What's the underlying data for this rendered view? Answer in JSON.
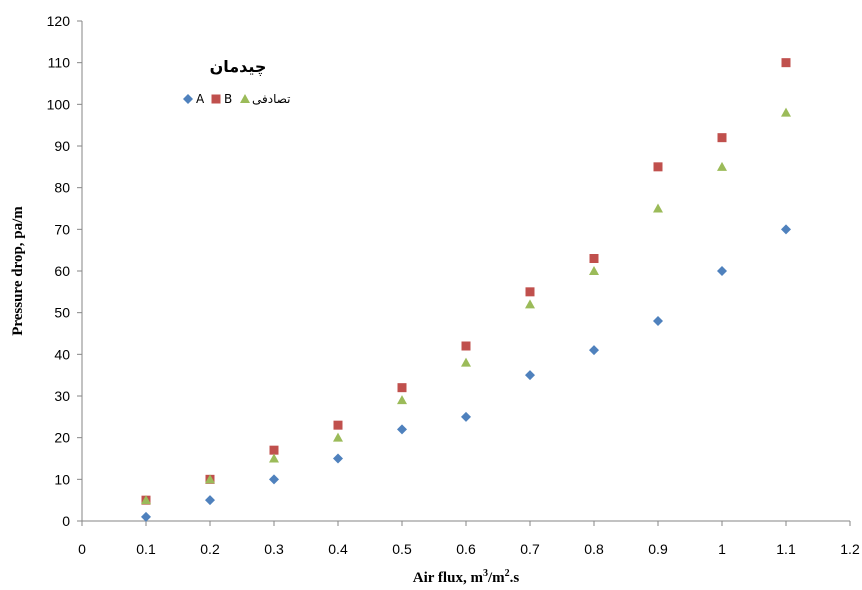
{
  "chart_data": {
    "type": "scatter",
    "x": [
      0.1,
      0.2,
      0.3,
      0.4,
      0.5,
      0.6,
      0.7,
      0.8,
      0.9,
      1.0,
      1.1
    ],
    "series": [
      {
        "name": "A",
        "marker": "diamond",
        "color": "#4F81BD",
        "values": [
          1,
          5,
          10,
          15,
          22,
          25,
          35,
          41,
          48,
          60,
          70
        ]
      },
      {
        "name": "B",
        "marker": "square",
        "color": "#C0504D",
        "values": [
          5,
          10,
          17,
          23,
          32,
          42,
          55,
          63,
          85,
          92,
          110
        ]
      },
      {
        "name": "تصادفی",
        "marker": "triangle",
        "color": "#9BBB59",
        "values": [
          5,
          10,
          15,
          20,
          29,
          38,
          52,
          60,
          75,
          85,
          98
        ]
      }
    ],
    "xlabel": "Air flux, m",
    "xlabel_sup1": "3",
    "xlabel_mid": "/m",
    "xlabel_sup2": "2",
    "xlabel_end": ".s",
    "ylabel": "Pressure drop, pa/m",
    "xlim": [
      0,
      1.2
    ],
    "ylim": [
      0,
      120
    ],
    "x_ticks": [
      "0",
      "0.1",
      "0.2",
      "0.3",
      "0.4",
      "0.5",
      "0.6",
      "0.7",
      "0.8",
      "0.9",
      "1",
      "1.1",
      "1.2"
    ],
    "y_ticks": [
      "0",
      "10",
      "20",
      "30",
      "40",
      "50",
      "60",
      "70",
      "80",
      "90",
      "100",
      "110",
      "120"
    ],
    "legend": {
      "title": "چیدمان",
      "placement": "top-left"
    },
    "grid": false
  }
}
